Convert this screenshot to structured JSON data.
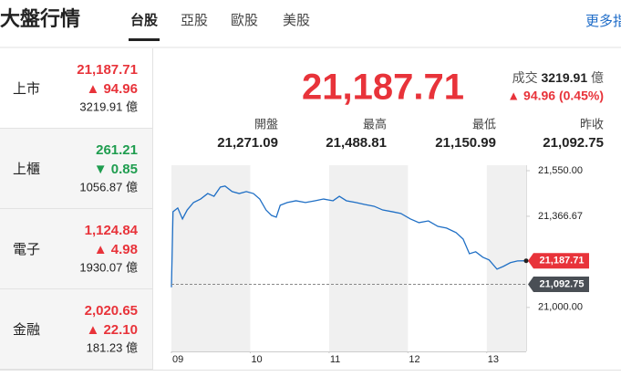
{
  "header": {
    "title": "大盤行情",
    "tabs": [
      "台股",
      "亞股",
      "歐股",
      "美股"
    ],
    "active_tab": 0,
    "more_link": "更多指數"
  },
  "indices": [
    {
      "name": "上市",
      "value": "21,187.71",
      "change": "▲ 94.96",
      "volume": "3219.91 億",
      "direction": "up"
    },
    {
      "name": "上櫃",
      "value": "261.21",
      "change": "▼ 0.85",
      "volume": "1056.87 億",
      "direction": "down"
    },
    {
      "name": "電子",
      "value": "1,124.84",
      "change": "▲ 4.98",
      "volume": "1930.07 億",
      "direction": "up"
    },
    {
      "name": "金融",
      "value": "2,020.65",
      "change": "▲ 22.10",
      "volume": "181.23 億",
      "direction": "up"
    }
  ],
  "quote": {
    "price": "21,187.71",
    "volume_label": "成交",
    "volume": "3219.91",
    "volume_unit": "億",
    "change": "▲ 94.96 (0.45%)"
  },
  "stats": [
    {
      "label": "開盤",
      "value": "21,271.09"
    },
    {
      "label": "最高",
      "value": "21,488.81"
    },
    {
      "label": "最低",
      "value": "21,150.99"
    },
    {
      "label": "昨收",
      "value": "21,092.75"
    }
  ],
  "chart": {
    "type": "line",
    "x": [
      9.0,
      9.02,
      9.08,
      9.14,
      9.2,
      9.28,
      9.37,
      9.46,
      9.54,
      9.62,
      9.68,
      9.77,
      9.86,
      9.95,
      10.04,
      10.12,
      10.2,
      10.27,
      10.33,
      10.38,
      10.47,
      10.58,
      10.7,
      10.82,
      10.93,
      11.05,
      11.13,
      11.22,
      11.34,
      11.45,
      11.57,
      11.68,
      11.8,
      11.91,
      12.03,
      12.14,
      12.26,
      12.38,
      12.49,
      12.61,
      12.7,
      12.78,
      12.86,
      12.95,
      13.03,
      13.13,
      13.21,
      13.3,
      13.39,
      13.5
    ],
    "series": [
      {
        "color": "#1f6fc5",
        "values": [
          21081,
          21385,
          21400,
          21356,
          21392,
          21422,
          21436,
          21458,
          21447,
          21484,
          21488,
          21466,
          21458,
          21466,
          21458,
          21436,
          21392,
          21370,
          21363,
          21411,
          21422,
          21429,
          21422,
          21429,
          21436,
          21429,
          21447,
          21429,
          21422,
          21414,
          21407,
          21392,
          21385,
          21378,
          21356,
          21341,
          21348,
          21326,
          21319,
          21301,
          21275,
          21216,
          21224,
          21202,
          21191,
          21154,
          21165,
          21180,
          21187,
          21187.71
        ]
      }
    ],
    "xlim": [
      9,
      13.5
    ],
    "xticks": [
      {
        "value": 9,
        "label": "09"
      },
      {
        "value": 10,
        "label": "10"
      },
      {
        "value": 11,
        "label": "11"
      },
      {
        "value": 12,
        "label": "12"
      },
      {
        "value": 13,
        "label": "13"
      }
    ],
    "ylim": [
      20970,
      21572
    ],
    "yticks": [
      {
        "value": 21000,
        "label": "21,000.00"
      },
      {
        "value": 21366.67,
        "label": "21,366.67"
      },
      {
        "value": 21550,
        "label": "21,550.00"
      }
    ],
    "markers": [
      {
        "value": 21187.71,
        "label": "21,187.71",
        "color": "#e8333a",
        "dashed": false
      },
      {
        "value": 21092.75,
        "label": "21,092.75",
        "color": "#4a4f55",
        "dashed": true
      }
    ]
  }
}
